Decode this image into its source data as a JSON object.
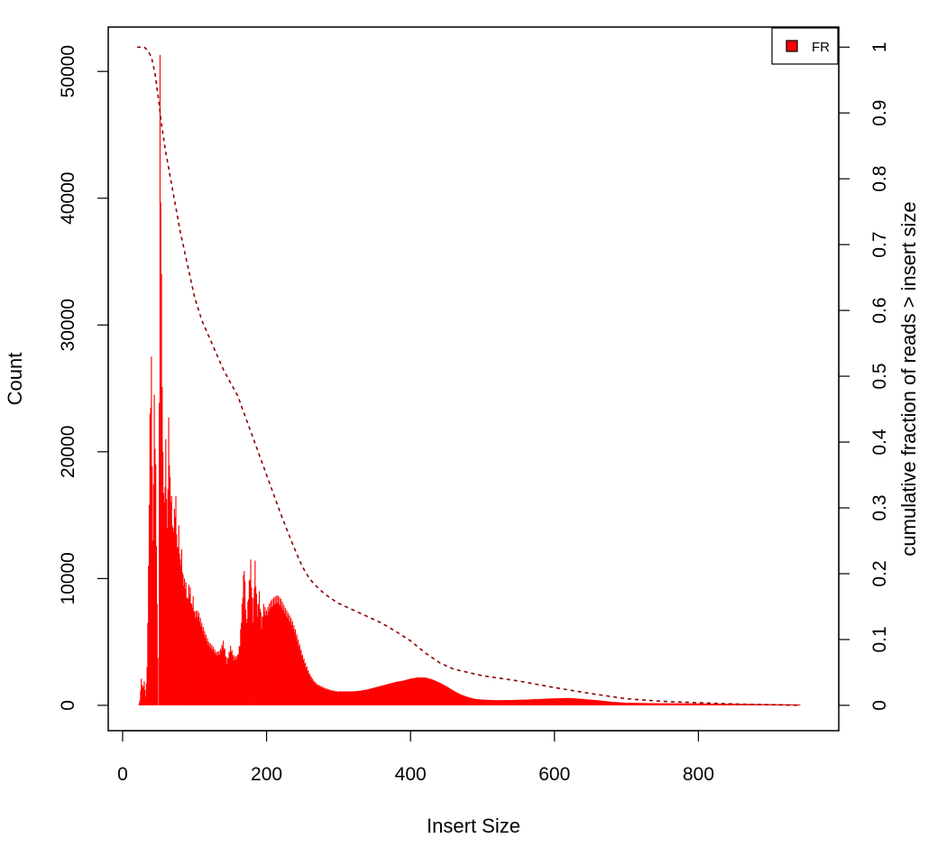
{
  "chart_data": {
    "type": "bar",
    "title": "",
    "xlabel": "Insert Size",
    "ylabel": "Count",
    "y2label": "cumulative fraction of reads > insert size",
    "xlim": [
      -20,
      995
    ],
    "ylim": [
      -2000,
      53500
    ],
    "y2lim": [
      -0.0385,
      1.0305
    ],
    "xticks": [
      0,
      200,
      400,
      600,
      800
    ],
    "yticks": [
      0,
      10000,
      20000,
      30000,
      40000,
      50000
    ],
    "y2ticks": [
      0,
      0.1,
      0.2,
      0.3,
      0.4,
      0.5,
      0.6,
      0.7,
      0.8,
      0.9,
      1
    ],
    "grid": false,
    "legend": {
      "position": "top-right",
      "entries": [
        {
          "label": "FR",
          "color": "#ff0000"
        }
      ]
    },
    "colors": {
      "bars": "#ff0000",
      "cumulative_line": "#8b0000"
    },
    "histogram": {
      "series_name": "FR",
      "points": [
        [
          22,
          0
        ],
        [
          24,
          400
        ],
        [
          26,
          2100
        ],
        [
          28,
          1400
        ],
        [
          30,
          1900
        ],
        [
          32,
          700
        ],
        [
          34,
          3000
        ],
        [
          36,
          11000
        ],
        [
          38,
          23000
        ],
        [
          40,
          27500
        ],
        [
          42,
          13000
        ],
        [
          44,
          24500
        ],
        [
          46,
          19000
        ],
        [
          48,
          8000
        ],
        [
          50,
          0
        ],
        [
          52,
          51300
        ],
        [
          54,
          34000
        ],
        [
          56,
          20000
        ],
        [
          58,
          16000
        ],
        [
          60,
          21000
        ],
        [
          62,
          14000
        ],
        [
          64,
          22700
        ],
        [
          66,
          18000
        ],
        [
          68,
          16500
        ],
        [
          70,
          14000
        ],
        [
          72,
          15500
        ],
        [
          74,
          16500
        ],
        [
          76,
          12500
        ],
        [
          78,
          14200
        ],
        [
          80,
          11500
        ],
        [
          82,
          12300
        ],
        [
          84,
          10300
        ],
        [
          86,
          10000
        ],
        [
          88,
          9700
        ],
        [
          90,
          8500
        ],
        [
          92,
          9500
        ],
        [
          94,
          9300
        ],
        [
          96,
          8000
        ],
        [
          98,
          8600
        ],
        [
          100,
          7400
        ],
        [
          105,
          7500
        ],
        [
          110,
          6500
        ],
        [
          115,
          5700
        ],
        [
          120,
          5000
        ],
        [
          125,
          4700
        ],
        [
          130,
          4200
        ],
        [
          135,
          4300
        ],
        [
          140,
          5100
        ],
        [
          145,
          3500
        ],
        [
          150,
          4700
        ],
        [
          155,
          3800
        ],
        [
          160,
          4000
        ],
        [
          163,
          5000
        ],
        [
          166,
          8000
        ],
        [
          169,
          11400
        ],
        [
          172,
          6500
        ],
        [
          175,
          9000
        ],
        [
          178,
          11500
        ],
        [
          181,
          7000
        ],
        [
          184,
          11400
        ],
        [
          187,
          7500
        ],
        [
          190,
          9000
        ],
        [
          193,
          6500
        ],
        [
          196,
          8000
        ],
        [
          200,
          7500
        ],
        [
          205,
          8200
        ],
        [
          210,
          8500
        ],
        [
          215,
          8700
        ],
        [
          220,
          8400
        ],
        [
          225,
          7800
        ],
        [
          230,
          7300
        ],
        [
          235,
          6800
        ],
        [
          240,
          6000
        ],
        [
          245,
          5000
        ],
        [
          250,
          4000
        ],
        [
          255,
          3200
        ],
        [
          260,
          2500
        ],
        [
          265,
          2000
        ],
        [
          270,
          1700
        ],
        [
          280,
          1400
        ],
        [
          290,
          1200
        ],
        [
          300,
          1100
        ],
        [
          310,
          1100
        ],
        [
          320,
          1100
        ],
        [
          330,
          1150
        ],
        [
          340,
          1250
        ],
        [
          350,
          1400
        ],
        [
          360,
          1550
        ],
        [
          370,
          1700
        ],
        [
          380,
          1850
        ],
        [
          390,
          1950
        ],
        [
          400,
          2100
        ],
        [
          410,
          2200
        ],
        [
          420,
          2200
        ],
        [
          430,
          2050
        ],
        [
          440,
          1800
        ],
        [
          450,
          1500
        ],
        [
          460,
          1150
        ],
        [
          470,
          850
        ],
        [
          480,
          650
        ],
        [
          490,
          500
        ],
        [
          500,
          450
        ],
        [
          520,
          400
        ],
        [
          540,
          420
        ],
        [
          560,
          450
        ],
        [
          580,
          500
        ],
        [
          600,
          550
        ],
        [
          620,
          580
        ],
        [
          640,
          500
        ],
        [
          660,
          400
        ],
        [
          680,
          280
        ],
        [
          700,
          200
        ],
        [
          750,
          160
        ],
        [
          800,
          150
        ],
        [
          850,
          120
        ],
        [
          900,
          90
        ],
        [
          941,
          70
        ]
      ]
    },
    "cumulative": {
      "line_style": "dashed",
      "points": [
        [
          20,
          1.0
        ],
        [
          30,
          1.0
        ],
        [
          35,
          0.995
        ],
        [
          40,
          0.985
        ],
        [
          45,
          0.96
        ],
        [
          50,
          0.92
        ],
        [
          55,
          0.875
        ],
        [
          60,
          0.84
        ],
        [
          65,
          0.81
        ],
        [
          70,
          0.78
        ],
        [
          80,
          0.72
        ],
        [
          90,
          0.67
        ],
        [
          100,
          0.62
        ],
        [
          110,
          0.585
        ],
        [
          120,
          0.56
        ],
        [
          130,
          0.535
        ],
        [
          140,
          0.51
        ],
        [
          150,
          0.49
        ],
        [
          160,
          0.47
        ],
        [
          170,
          0.44
        ],
        [
          180,
          0.41
        ],
        [
          190,
          0.38
        ],
        [
          200,
          0.35
        ],
        [
          210,
          0.32
        ],
        [
          220,
          0.29
        ],
        [
          230,
          0.262
        ],
        [
          240,
          0.235
        ],
        [
          250,
          0.21
        ],
        [
          260,
          0.192
        ],
        [
          270,
          0.18
        ],
        [
          280,
          0.17
        ],
        [
          290,
          0.162
        ],
        [
          300,
          0.155
        ],
        [
          320,
          0.145
        ],
        [
          340,
          0.135
        ],
        [
          360,
          0.125
        ],
        [
          380,
          0.112
        ],
        [
          400,
          0.098
        ],
        [
          420,
          0.08
        ],
        [
          440,
          0.065
        ],
        [
          460,
          0.055
        ],
        [
          480,
          0.05
        ],
        [
          500,
          0.045
        ],
        [
          550,
          0.037
        ],
        [
          600,
          0.027
        ],
        [
          650,
          0.018
        ],
        [
          700,
          0.01
        ],
        [
          750,
          0.006
        ],
        [
          800,
          0.004
        ],
        [
          850,
          0.002
        ],
        [
          900,
          0.001
        ],
        [
          941,
          0
        ]
      ]
    }
  }
}
